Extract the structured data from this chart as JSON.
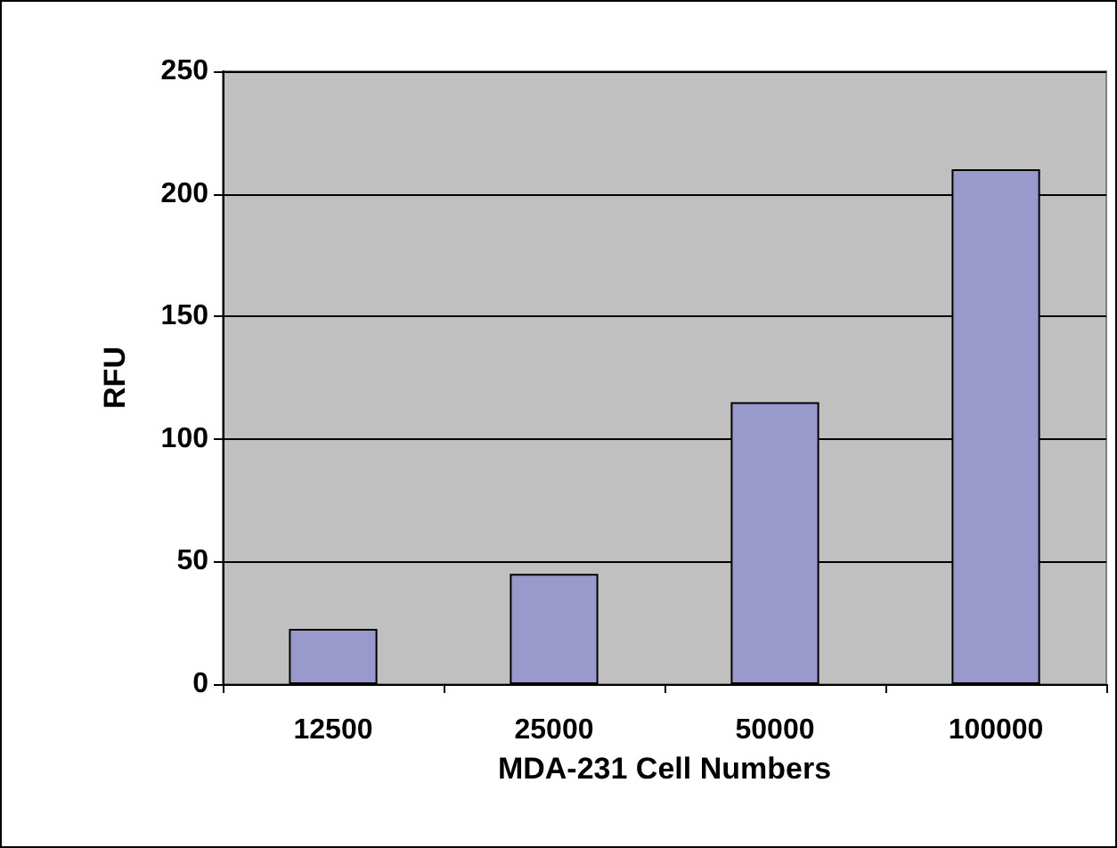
{
  "chart_data": {
    "type": "bar",
    "xlabel": "MDA-231 Cell Numbers",
    "ylabel": "RFU",
    "categories": [
      "12500",
      "25000",
      "50000",
      "100000"
    ],
    "series": [
      {
        "color": "#9999cc",
        "values": [
          22.5,
          45,
          115,
          210
        ]
      }
    ],
    "ylim": [
      0,
      250
    ],
    "yticks": [
      0,
      50,
      100,
      150,
      200,
      250
    ],
    "grid": "y"
  }
}
